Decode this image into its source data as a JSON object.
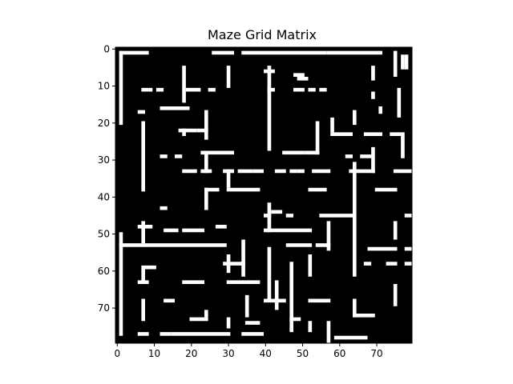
{
  "chart_data": {
    "type": "heatmap",
    "title": "Maze Grid Matrix",
    "xlabel": "",
    "ylabel": "",
    "xlim": [
      0,
      79
    ],
    "ylim": [
      79,
      0
    ],
    "x_ticks": [
      0,
      10,
      20,
      30,
      40,
      50,
      60,
      70
    ],
    "y_ticks": [
      0,
      10,
      20,
      30,
      40,
      50,
      60,
      70
    ],
    "colormap": {
      "0": "#000000",
      "1": "#ffffff"
    },
    "grid_size": [
      80,
      80
    ],
    "open_cells_h_runs": [
      [
        1,
        1,
        8
      ],
      [
        1,
        26,
        31
      ],
      [
        1,
        34,
        56
      ],
      [
        1,
        57,
        67
      ],
      [
        1,
        68,
        71
      ],
      [
        6,
        40,
        42
      ],
      [
        7,
        48,
        50
      ],
      [
        8,
        49,
        51
      ],
      [
        11,
        7,
        9
      ],
      [
        11,
        11,
        12
      ],
      [
        11,
        19,
        22
      ],
      [
        11,
        25,
        26
      ],
      [
        11,
        41,
        42
      ],
      [
        11,
        48,
        50
      ],
      [
        11,
        52,
        53
      ],
      [
        11,
        55,
        56
      ],
      [
        16,
        12,
        19
      ],
      [
        17,
        6,
        7
      ],
      [
        22,
        17,
        21
      ],
      [
        22,
        22,
        24
      ],
      [
        23,
        58,
        63
      ],
      [
        23,
        67,
        71
      ],
      [
        23,
        74,
        76
      ],
      [
        28,
        23,
        31
      ],
      [
        28,
        45,
        50
      ],
      [
        28,
        51,
        54
      ],
      [
        29,
        12,
        13
      ],
      [
        29,
        16,
        17
      ],
      [
        29,
        62,
        63
      ],
      [
        29,
        66,
        68
      ],
      [
        33,
        18,
        21
      ],
      [
        33,
        23,
        25
      ],
      [
        33,
        29,
        31
      ],
      [
        33,
        33,
        36
      ],
      [
        33,
        37,
        39
      ],
      [
        33,
        43,
        45
      ],
      [
        33,
        47,
        48
      ],
      [
        33,
        49,
        50
      ],
      [
        33,
        53,
        57
      ],
      [
        33,
        63,
        69
      ],
      [
        33,
        75,
        79
      ],
      [
        38,
        24,
        27
      ],
      [
        38,
        30,
        38
      ],
      [
        38,
        52,
        56
      ],
      [
        38,
        70,
        75
      ],
      [
        43,
        12,
        13
      ],
      [
        44,
        42,
        44
      ],
      [
        45,
        40,
        41
      ],
      [
        45,
        46,
        47
      ],
      [
        45,
        55,
        63
      ],
      [
        45,
        78,
        79
      ],
      [
        48,
        6,
        9
      ],
      [
        48,
        27,
        29
      ],
      [
        49,
        40,
        52
      ],
      [
        49,
        13,
        16
      ],
      [
        49,
        18,
        23
      ],
      [
        53,
        1,
        29
      ],
      [
        53,
        46,
        47
      ],
      [
        53,
        48,
        52
      ],
      [
        53,
        54,
        57
      ],
      [
        54,
        68,
        75
      ],
      [
        54,
        78,
        79
      ],
      [
        58,
        29,
        34
      ],
      [
        58,
        67,
        68
      ],
      [
        58,
        73,
        75
      ],
      [
        58,
        78,
        79
      ],
      [
        59,
        7,
        10
      ],
      [
        63,
        18,
        23
      ],
      [
        63,
        30,
        38
      ],
      [
        63,
        6,
        8
      ],
      [
        68,
        40,
        45
      ],
      [
        68,
        52,
        57
      ],
      [
        68,
        13,
        15
      ],
      [
        72,
        64,
        69
      ],
      [
        73,
        20,
        24
      ],
      [
        73,
        47,
        49
      ],
      [
        74,
        35,
        38
      ],
      [
        77,
        6,
        8
      ],
      [
        77,
        12,
        14
      ],
      [
        77,
        15,
        30
      ],
      [
        77,
        34,
        39
      ],
      [
        78,
        59,
        67
      ]
    ],
    "open_cells_v_runs": [
      [
        1,
        1,
        20
      ],
      [
        1,
        50,
        77
      ],
      [
        7,
        20,
        38
      ],
      [
        7,
        47,
        52
      ],
      [
        7,
        60,
        63
      ],
      [
        7,
        68,
        73
      ],
      [
        18,
        5,
        14
      ],
      [
        18,
        22,
        23
      ],
      [
        24,
        17,
        24
      ],
      [
        24,
        28,
        33
      ],
      [
        24,
        38,
        43
      ],
      [
        24,
        71,
        72
      ],
      [
        30,
        5,
        10
      ],
      [
        30,
        33,
        37
      ],
      [
        30,
        56,
        60
      ],
      [
        30,
        73,
        75
      ],
      [
        34,
        52,
        61
      ],
      [
        35,
        67,
        72
      ],
      [
        41,
        5,
        27
      ],
      [
        41,
        42,
        49
      ],
      [
        41,
        54,
        67
      ],
      [
        43,
        63,
        70
      ],
      [
        47,
        58,
        76
      ],
      [
        52,
        56,
        61
      ],
      [
        52,
        74,
        76
      ],
      [
        54,
        20,
        28
      ],
      [
        58,
        19,
        22
      ],
      [
        57,
        47,
        54
      ],
      [
        57,
        74,
        79
      ],
      [
        64,
        31,
        61
      ],
      [
        64,
        68,
        72
      ],
      [
        64,
        17,
        20
      ],
      [
        69,
        5,
        8
      ],
      [
        69,
        12,
        13
      ],
      [
        69,
        27,
        33
      ],
      [
        75,
        1,
        7
      ],
      [
        75,
        47,
        51
      ],
      [
        75,
        64,
        69
      ],
      [
        76,
        11,
        18
      ],
      [
        77,
        2,
        5
      ],
      [
        77,
        23,
        29
      ],
      [
        71,
        16,
        17
      ],
      [
        78,
        2,
        5
      ]
    ]
  }
}
